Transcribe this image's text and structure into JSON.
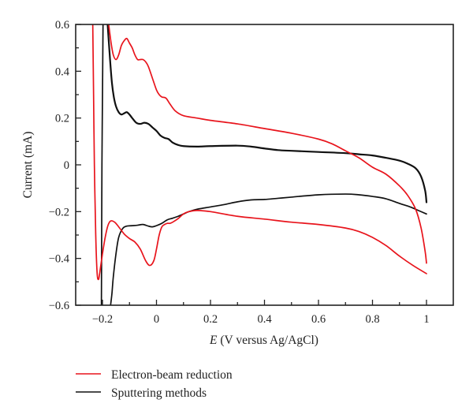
{
  "chart_data": {
    "type": "line",
    "title": "",
    "xlabel_italic": "E",
    "xlabel_rest": " (V versus Ag/AgCl)",
    "xlabel": "E (V versus Ag/AgCl)",
    "ylabel": "Current (mA)",
    "xlim": [
      -0.3,
      1.1
    ],
    "ylim": [
      -0.6,
      0.6
    ],
    "x_ticks": [
      -0.2,
      0,
      0.2,
      0.4,
      0.6,
      0.8,
      1
    ],
    "x_tick_labels": [
      "−0.2",
      "0",
      "0.2",
      "0.4",
      "0.6",
      "0.8",
      "1"
    ],
    "x_minor_ticks": [
      -0.1,
      0.1,
      0.3,
      0.5,
      0.7,
      0.9
    ],
    "y_ticks": [
      0.6,
      0.4,
      0.2,
      0,
      -0.2,
      -0.4,
      -0.6
    ],
    "y_tick_labels": [
      "0.6",
      "0.4",
      "0.2",
      "0",
      "−0.2",
      "−0.4",
      "−0.6"
    ],
    "y_minor_ticks": [
      0.5,
      0.3,
      0.1,
      -0.1,
      -0.3,
      -0.5
    ],
    "grid": false,
    "legend_position": "bottom-left-outside",
    "series": [
      {
        "name": "Electron-beam reduction",
        "color": "#e8141c",
        "segments": [
          [
            [
              -0.177,
              0.6
            ],
            [
              -0.168,
              0.52
            ],
            [
              -0.16,
              0.47
            ],
            [
              -0.15,
              0.45
            ],
            [
              -0.14,
              0.47
            ],
            [
              -0.13,
              0.51
            ],
            [
              -0.12,
              0.53
            ],
            [
              -0.11,
              0.54
            ],
            [
              -0.1,
              0.52
            ],
            [
              -0.09,
              0.5
            ],
            [
              -0.08,
              0.47
            ],
            [
              -0.07,
              0.45
            ],
            [
              -0.06,
              0.45
            ],
            [
              -0.05,
              0.45
            ],
            [
              -0.04,
              0.44
            ],
            [
              -0.03,
              0.42
            ],
            [
              -0.015,
              0.37
            ],
            [
              0.0,
              0.32
            ],
            [
              0.01,
              0.3
            ],
            [
              0.02,
              0.29
            ],
            [
              0.035,
              0.285
            ],
            [
              0.05,
              0.26
            ],
            [
              0.07,
              0.23
            ],
            [
              0.1,
              0.21
            ],
            [
              0.15,
              0.2
            ],
            [
              0.2,
              0.19
            ],
            [
              0.3,
              0.175
            ],
            [
              0.4,
              0.155
            ],
            [
              0.5,
              0.135
            ],
            [
              0.6,
              0.11
            ],
            [
              0.65,
              0.09
            ],
            [
              0.7,
              0.06
            ],
            [
              0.75,
              0.03
            ],
            [
              0.8,
              -0.01
            ],
            [
              0.85,
              -0.04
            ],
            [
              0.9,
              -0.09
            ],
            [
              0.93,
              -0.13
            ],
            [
              0.96,
              -0.19
            ],
            [
              0.98,
              -0.27
            ],
            [
              0.995,
              -0.37
            ],
            [
              1.0,
              -0.42
            ]
          ],
          [
            [
              1.0,
              -0.465
            ],
            [
              0.95,
              -0.43
            ],
            [
              0.9,
              -0.39
            ],
            [
              0.85,
              -0.345
            ],
            [
              0.8,
              -0.31
            ],
            [
              0.75,
              -0.285
            ],
            [
              0.7,
              -0.27
            ],
            [
              0.6,
              -0.255
            ],
            [
              0.5,
              -0.245
            ],
            [
              0.4,
              -0.232
            ],
            [
              0.3,
              -0.22
            ],
            [
              0.2,
              -0.2
            ],
            [
              0.15,
              -0.195
            ],
            [
              0.12,
              -0.2
            ],
            [
              0.1,
              -0.21
            ],
            [
              0.08,
              -0.23
            ],
            [
              0.06,
              -0.245
            ],
            [
              0.05,
              -0.25
            ],
            [
              0.04,
              -0.25
            ],
            [
              0.03,
              -0.255
            ],
            [
              0.02,
              -0.265
            ],
            [
              0.01,
              -0.3
            ],
            [
              0.0,
              -0.36
            ],
            [
              -0.01,
              -0.41
            ],
            [
              -0.025,
              -0.43
            ],
            [
              -0.04,
              -0.41
            ],
            [
              -0.06,
              -0.36
            ],
            [
              -0.08,
              -0.33
            ],
            [
              -0.1,
              -0.315
            ],
            [
              -0.12,
              -0.295
            ],
            [
              -0.14,
              -0.265
            ],
            [
              -0.155,
              -0.245
            ],
            [
              -0.17,
              -0.24
            ],
            [
              -0.18,
              -0.26
            ],
            [
              -0.19,
              -0.31
            ],
            [
              -0.2,
              -0.38
            ],
            [
              -0.21,
              -0.46
            ],
            [
              -0.215,
              -0.49
            ],
            [
              -0.22,
              -0.46
            ],
            [
              -0.225,
              -0.3
            ],
            [
              -0.23,
              0.0
            ],
            [
              -0.233,
              0.3
            ],
            [
              -0.236,
              0.6
            ]
          ]
        ]
      },
      {
        "name": "Sputtering methods",
        "color": "#111111",
        "segments": [
          [
            [
              -0.181,
              0.6
            ],
            [
              -0.172,
              0.45
            ],
            [
              -0.165,
              0.35
            ],
            [
              -0.158,
              0.29
            ],
            [
              -0.15,
              0.25
            ],
            [
              -0.14,
              0.225
            ],
            [
              -0.13,
              0.215
            ],
            [
              -0.12,
              0.22
            ],
            [
              -0.11,
              0.225
            ],
            [
              -0.1,
              0.215
            ],
            [
              -0.09,
              0.2
            ],
            [
              -0.075,
              0.18
            ],
            [
              -0.06,
              0.175
            ],
            [
              -0.045,
              0.18
            ],
            [
              -0.03,
              0.175
            ],
            [
              -0.015,
              0.16
            ],
            [
              0.0,
              0.145
            ],
            [
              0.015,
              0.125
            ],
            [
              0.03,
              0.115
            ],
            [
              0.045,
              0.11
            ],
            [
              0.06,
              0.095
            ],
            [
              0.08,
              0.085
            ],
            [
              0.1,
              0.08
            ],
            [
              0.15,
              0.078
            ],
            [
              0.2,
              0.08
            ],
            [
              0.3,
              0.082
            ],
            [
              0.35,
              0.078
            ],
            [
              0.4,
              0.07
            ],
            [
              0.45,
              0.063
            ],
            [
              0.5,
              0.06
            ],
            [
              0.6,
              0.055
            ],
            [
              0.7,
              0.05
            ],
            [
              0.75,
              0.045
            ],
            [
              0.8,
              0.04
            ],
            [
              0.85,
              0.03
            ],
            [
              0.9,
              0.018
            ],
            [
              0.93,
              0.005
            ],
            [
              0.96,
              -0.015
            ],
            [
              0.98,
              -0.05
            ],
            [
              0.995,
              -0.11
            ],
            [
              1.0,
              -0.16
            ]
          ],
          [
            [
              1.0,
              -0.21
            ],
            [
              0.97,
              -0.195
            ],
            [
              0.94,
              -0.18
            ],
            [
              0.9,
              -0.165
            ],
            [
              0.85,
              -0.145
            ],
            [
              0.8,
              -0.135
            ],
            [
              0.75,
              -0.128
            ],
            [
              0.7,
              -0.125
            ],
            [
              0.6,
              -0.128
            ],
            [
              0.5,
              -0.138
            ],
            [
              0.45,
              -0.143
            ],
            [
              0.4,
              -0.148
            ],
            [
              0.35,
              -0.15
            ],
            [
              0.3,
              -0.158
            ],
            [
              0.25,
              -0.17
            ],
            [
              0.2,
              -0.18
            ],
            [
              0.15,
              -0.19
            ],
            [
              0.12,
              -0.2
            ],
            [
              0.1,
              -0.21
            ],
            [
              0.08,
              -0.22
            ],
            [
              0.06,
              -0.228
            ],
            [
              0.04,
              -0.235
            ],
            [
              0.02,
              -0.25
            ],
            [
              0.0,
              -0.26
            ],
            [
              -0.015,
              -0.265
            ],
            [
              -0.03,
              -0.262
            ],
            [
              -0.05,
              -0.255
            ],
            [
              -0.07,
              -0.258
            ],
            [
              -0.09,
              -0.26
            ],
            [
              -0.11,
              -0.262
            ],
            [
              -0.125,
              -0.272
            ],
            [
              -0.14,
              -0.31
            ],
            [
              -0.15,
              -0.38
            ],
            [
              -0.16,
              -0.48
            ],
            [
              -0.165,
              -0.55
            ],
            [
              -0.17,
              -0.6
            ]
          ],
          [
            [
              -0.204,
              -0.6
            ],
            [
              -0.203,
              -0.3
            ],
            [
              -0.202,
              0.0
            ],
            [
              -0.2,
              0.3
            ],
            [
              -0.198,
              0.6
            ]
          ]
        ]
      }
    ]
  }
}
